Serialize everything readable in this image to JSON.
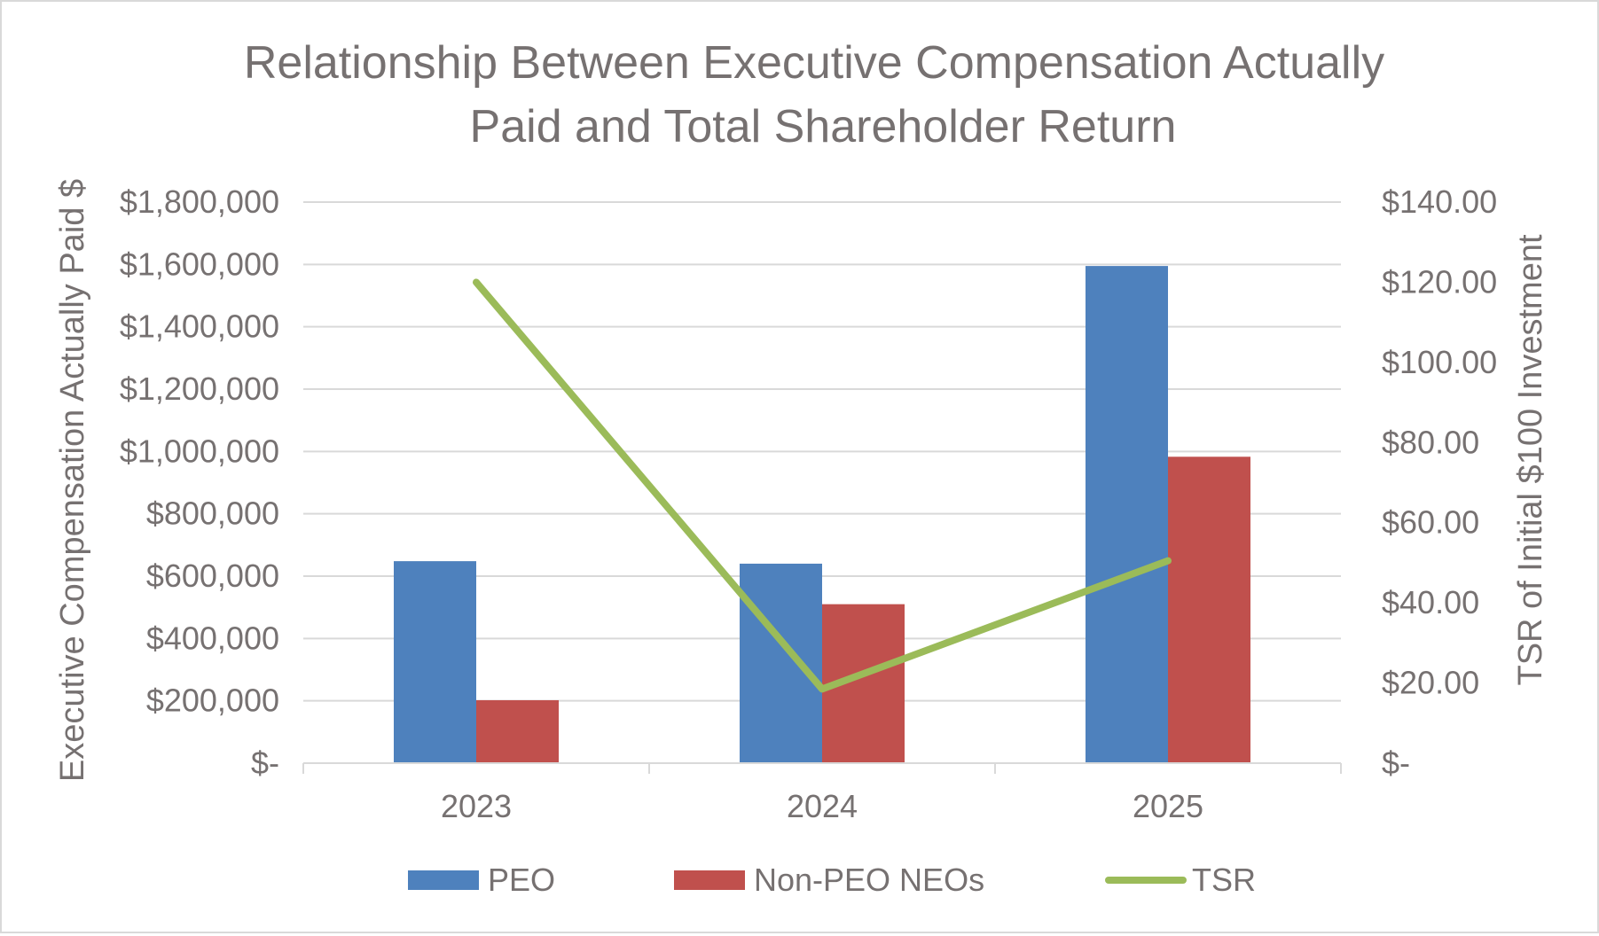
{
  "chart_data": {
    "type": "bar",
    "title_lines": [
      "Relationship Between Executive Compensation Actually",
      "Paid and Total Shareholder Return"
    ],
    "categories": [
      "2023",
      "2024",
      "2025"
    ],
    "series": [
      {
        "name": "PEO",
        "type": "bar",
        "axis": "left",
        "color": "#4e81bd",
        "values": [
          648000,
          640000,
          1595000
        ]
      },
      {
        "name": "Non-PEO NEOs",
        "type": "bar",
        "axis": "left",
        "color": "#c0504d",
        "values": [
          202000,
          510000,
          983000
        ]
      },
      {
        "name": "TSR",
        "type": "line",
        "axis": "right",
        "color": "#9bbb59",
        "values": [
          120.0,
          18.5,
          50.5
        ]
      }
    ],
    "ylabel": "Executive Compensation Actually Paid $",
    "y2label": "TSR of Initial $100 Investment",
    "ylim": [
      0,
      1800000
    ],
    "y2lim": [
      0,
      140
    ],
    "yticks": [
      "$-",
      "$200,000",
      "$400,000",
      "$600,000",
      "$800,000",
      "$1,000,000",
      "$1,200,000",
      "$1,400,000",
      "$1,600,000",
      "$1,800,000"
    ],
    "y2ticks": [
      "$-",
      "$20.00",
      "$40.00",
      "$60.00",
      "$80.00",
      "$100.00",
      "$120.00",
      "$140.00"
    ],
    "grid": true,
    "legend_position": "bottom"
  }
}
